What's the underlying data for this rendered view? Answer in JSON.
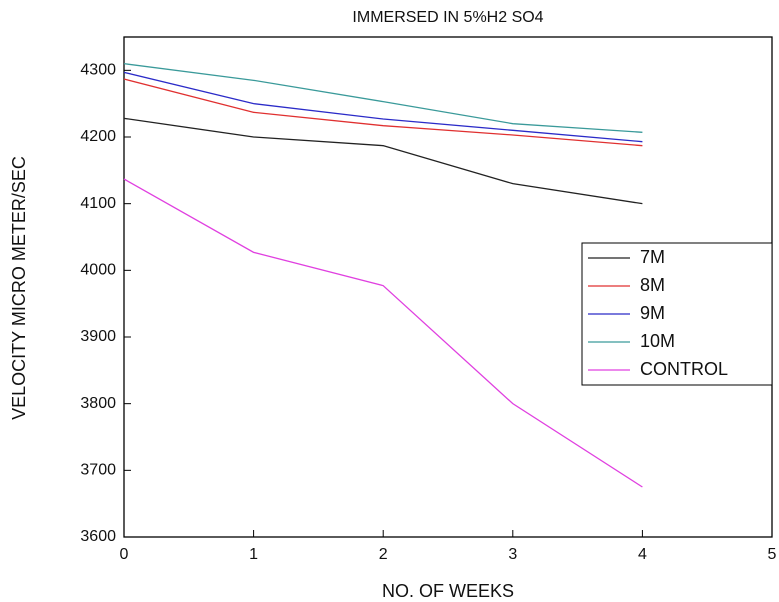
{
  "chart_data": {
    "type": "line",
    "title": "IMMERSED IN 5%H2 SO4",
    "x_label": "NO. OF WEEKS",
    "y_label": "VELOCITY MICRO METER/SEC",
    "x": [
      0,
      1,
      2,
      3,
      4
    ],
    "series": [
      {
        "name": "7M",
        "color": "#222222",
        "values": [
          4228,
          4200,
          4187,
          4130,
          4100
        ]
      },
      {
        "name": "8M",
        "color": "#e03030",
        "values": [
          4287,
          4237,
          4217,
          4203,
          4187
        ]
      },
      {
        "name": "9M",
        "color": "#2b2bc8",
        "values": [
          4297,
          4250,
          4227,
          4210,
          4193
        ]
      },
      {
        "name": "10M",
        "color": "#3a9a9a",
        "values": [
          4310,
          4285,
          4253,
          4220,
          4207
        ]
      },
      {
        "name": "CONTROL",
        "color": "#e040e0",
        "values": [
          4137,
          4027,
          3977,
          3800,
          3675
        ]
      }
    ],
    "xlim": [
      0,
      5
    ],
    "xticks": [
      0,
      1,
      2,
      3,
      4,
      5
    ],
    "ylim": [
      3600,
      4350
    ],
    "yticks": [
      3600,
      3700,
      3800,
      3900,
      4000,
      4100,
      4200,
      4300
    ],
    "legend": "right"
  }
}
